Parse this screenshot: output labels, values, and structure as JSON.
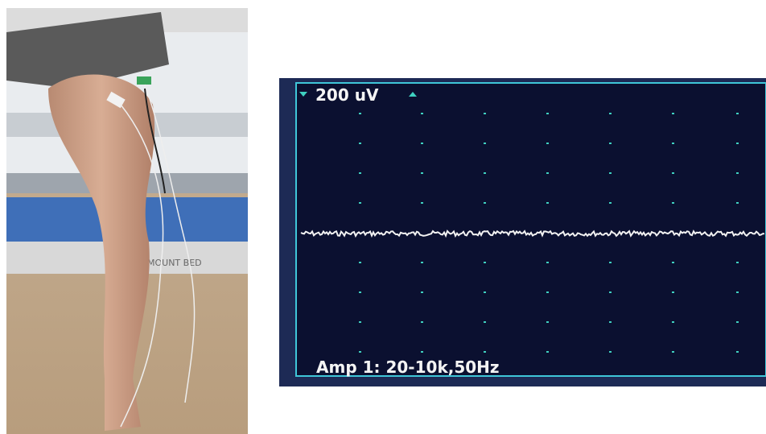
{
  "photo": {
    "bed_label": "MOUNT BED"
  },
  "monitor": {
    "scale": "200 uV",
    "amplifier": "Amp 1: 20-10k,50Hz"
  }
}
